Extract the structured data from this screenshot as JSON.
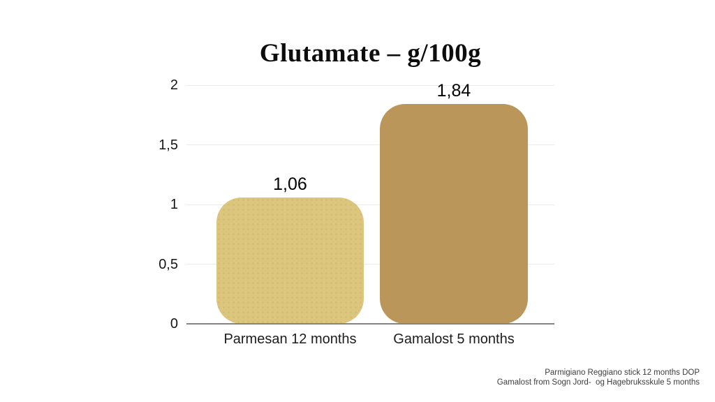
{
  "chart_data": {
    "type": "bar",
    "title": "Glutamate – g/100g",
    "categories": [
      "Parmesan 12 months",
      "Gamalost 5 months"
    ],
    "values": [
      1.06,
      1.84
    ],
    "value_labels": [
      "1,06",
      "1,84"
    ],
    "bar_colors": [
      "#dcc57d",
      "#bb965b"
    ],
    "xlabel": "",
    "ylabel": "",
    "ylim": [
      0,
      2
    ],
    "yticks": [
      0,
      0.5,
      1,
      1.5,
      2
    ],
    "ytick_labels": [
      "0",
      "0,5",
      "1",
      "1,5",
      "2"
    ],
    "grid": true,
    "gridline_color": "#ebebeb",
    "axis_color": "#848484",
    "legend": "none"
  },
  "footer": {
    "line1": "Parmigiano Reggiano stick 12 months DOP",
    "line2": "Gamalost from Sogn Jord-  og Hagebruksskule 5 months"
  }
}
